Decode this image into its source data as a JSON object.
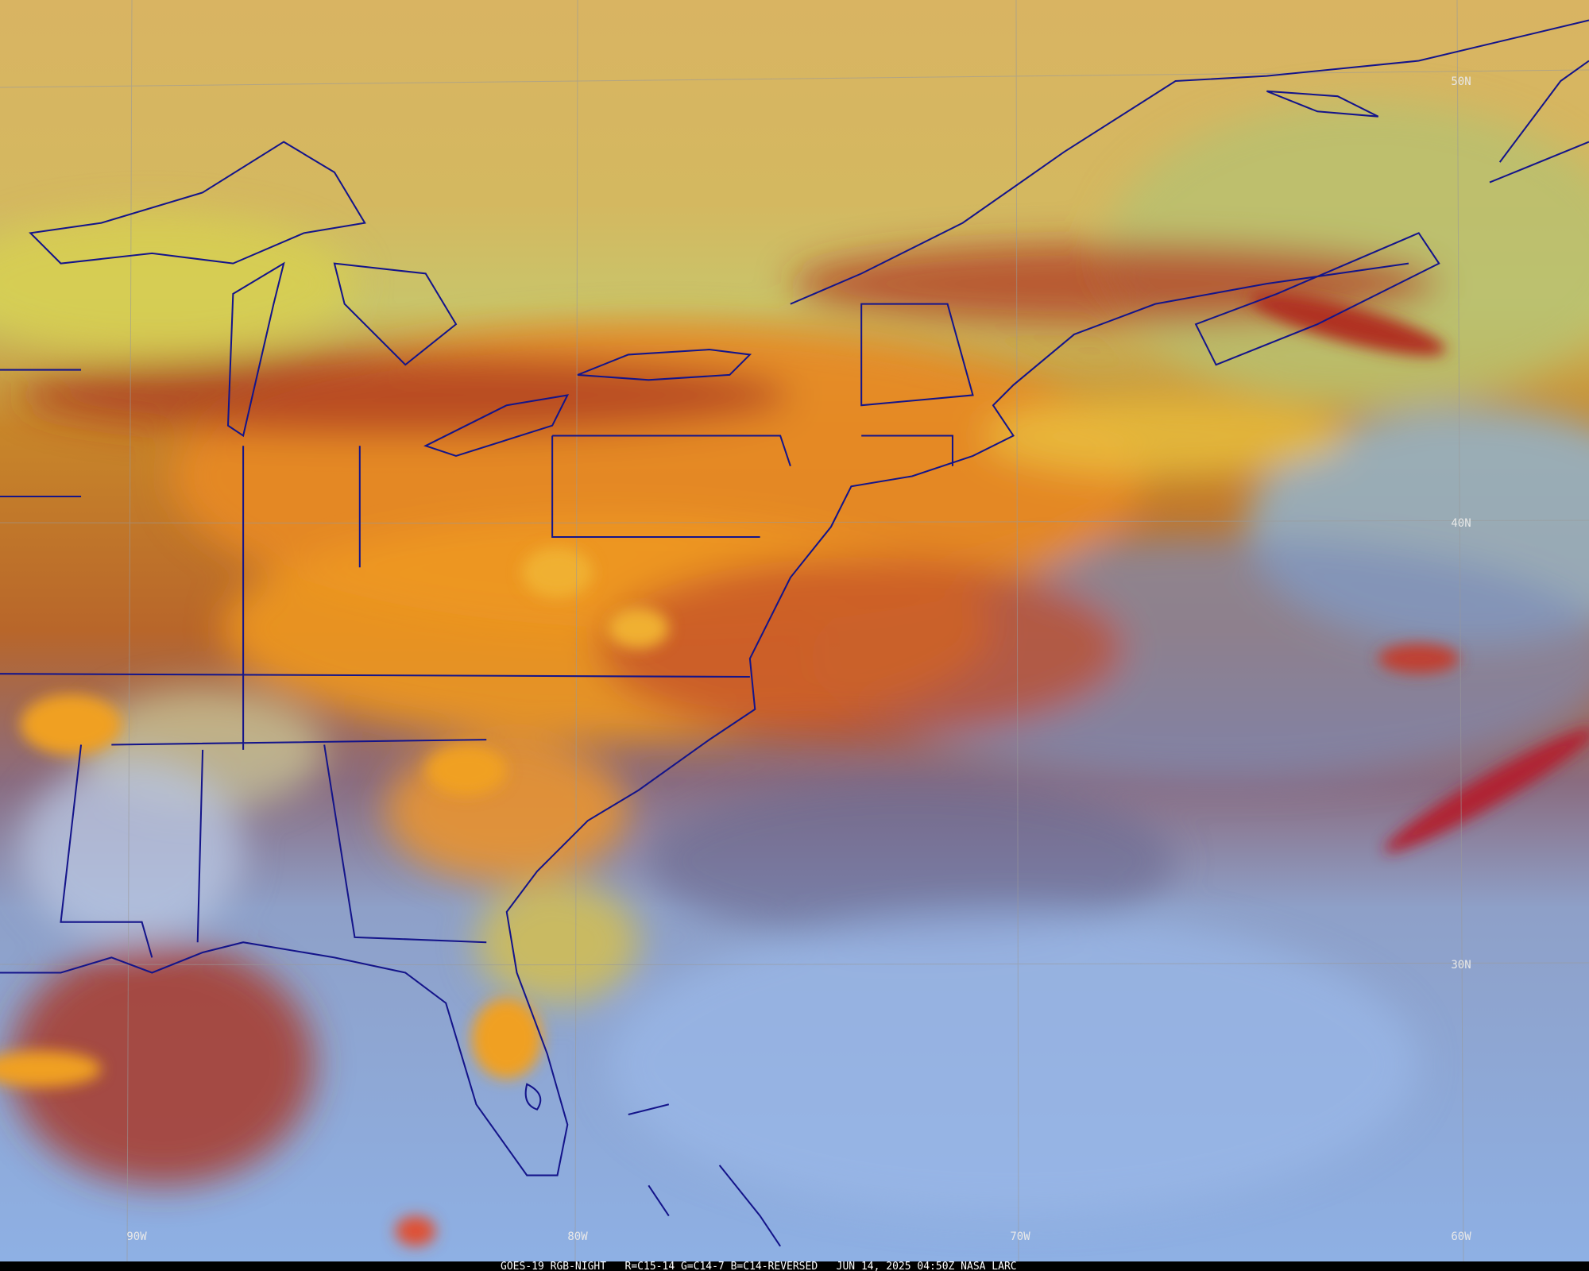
{
  "map": {
    "lat_labels": [
      "50N",
      "40N",
      "30N"
    ],
    "lon_labels": [
      "90W",
      "80W",
      "70W",
      "60W"
    ],
    "footer": "GOES-19 RGB-NIGHT   R=C15-14 G=C14-7 B=C14-REVERSED   JUN 14, 2025 04:50Z NASA LARC"
  }
}
